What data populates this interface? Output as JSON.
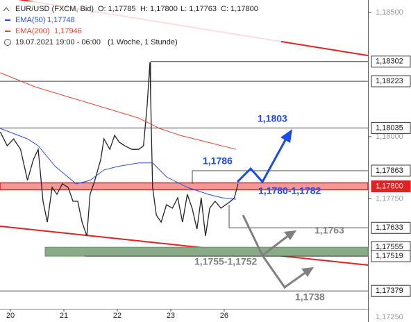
{
  "chart_data": {
    "type": "line",
    "x": [
      -0.19,
      -0.06,
      0.06,
      0.19,
      0.32,
      0.43,
      0.52,
      0.61,
      0.69,
      0.78,
      0.87,
      0.97,
      1.08,
      1.17,
      1.26,
      1.34,
      1.43,
      1.49,
      1.58,
      1.69,
      1.75,
      1.86,
      1.95,
      2.04,
      2.14,
      2.27,
      2.4,
      2.49,
      2.56,
      2.61,
      2.66,
      2.73,
      2.82,
      2.92,
      3.03,
      3.13,
      3.22,
      3.31,
      3.4,
      3.49,
      3.57,
      3.65,
      3.73,
      3.83,
      3.94,
      4.03,
      4.12,
      4.19,
      4.26
    ],
    "series": [
      {
        "name": "EUR/USD (FXCM, Bid)",
        "color": "#222222",
        "values": [
          1.18019,
          1.17963,
          1.17991,
          1.17949,
          1.17824,
          1.17908,
          1.17949,
          1.1774,
          1.17656,
          1.17796,
          1.17768,
          1.1781,
          1.17796,
          1.1774,
          1.1774,
          1.17656,
          1.176,
          1.17768,
          1.17824,
          1.17908,
          1.17991,
          1.17949,
          1.18005,
          1.17977,
          1.17963,
          1.17949,
          1.17949,
          1.17963,
          1.18131,
          1.18299,
          1.17796,
          1.17684,
          1.17656,
          1.17726,
          1.17712,
          1.17754,
          1.17656,
          1.17768,
          1.17712,
          1.17628,
          1.17754,
          1.176,
          1.17712,
          1.1774,
          1.17712,
          1.17726,
          1.1774,
          1.17754,
          1.1781
        ]
      },
      {
        "name": "EMA(50)",
        "color": "#2a4fd6",
        "x": [
          -0.19,
          0.32,
          0.52,
          0.84,
          1.23,
          1.49,
          1.75,
          2.01,
          2.4,
          2.66,
          2.92,
          3.31,
          3.7,
          3.96,
          4.22
        ],
        "values": [
          1.18033,
          1.17991,
          1.17963,
          1.1788,
          1.1781,
          1.17824,
          1.17866,
          1.1788,
          1.17894,
          1.17894,
          1.17838,
          1.17796,
          1.17768,
          1.17754,
          1.17748
        ]
      },
      {
        "name": "EMA(200)",
        "color": "#e8452f",
        "x": [
          -0.19,
          0.45,
          1.1,
          1.75,
          2.4,
          2.79,
          3.18,
          3.7,
          4.22
        ],
        "values": [
          1.18257,
          1.18201,
          1.18159,
          1.18117,
          1.18075,
          1.18033,
          1.18005,
          1.17977,
          1.17949
        ]
      }
    ],
    "info": {
      "ohlc": [
        "O: 1,17785",
        "H: 1,17800",
        "L: 1,17763",
        "C: 1,17800"
      ],
      "ema_values": [
        "1,17748",
        "1,17946"
      ],
      "period": "19.07.2021 19:00 - 06:00",
      "timeframe": "(1 Woche, 1 Stunde)"
    },
    "xlim": [
      -0.195,
      6.69
    ],
    "xticks": [
      {
        "value": 0,
        "label": "20"
      },
      {
        "value": 1,
        "label": "21"
      },
      {
        "value": 2,
        "label": "22"
      },
      {
        "value": 3,
        "label": "23"
      },
      {
        "value": 4,
        "label": "26"
      }
    ],
    "ylim": [
      1.1725,
      1.1855
    ],
    "yticks": [
      {
        "value": 1.185,
        "label": "1,18500"
      },
      {
        "value": 1.18,
        "label": "1,18000"
      },
      {
        "value": 1.1775,
        "label": "1,17750"
      },
      {
        "value": 1.1725,
        "label": "1,17250"
      }
    ],
    "levels": [
      {
        "value": 1.18302,
        "label": "1,18302"
      },
      {
        "value": 1.18223,
        "label": "1,18223"
      },
      {
        "value": 1.18035,
        "label": "1,18035"
      },
      {
        "value": 1.17863,
        "label": "1,17863"
      },
      {
        "value": 1.178,
        "label": "1,17800"
      },
      {
        "value": 1.17633,
        "label": "1,17633"
      },
      {
        "value": 1.17555,
        "label": "1,17555"
      },
      {
        "value": 1.17519,
        "label": "1,17519"
      },
      {
        "value": 1.17379,
        "label": "1,17379"
      }
    ],
    "annotations": [
      "1,1803",
      "1,1786",
      "1,1780-1,1782",
      "1,1763",
      "1,1755-1,1752",
      "1,1738"
    ]
  }
}
